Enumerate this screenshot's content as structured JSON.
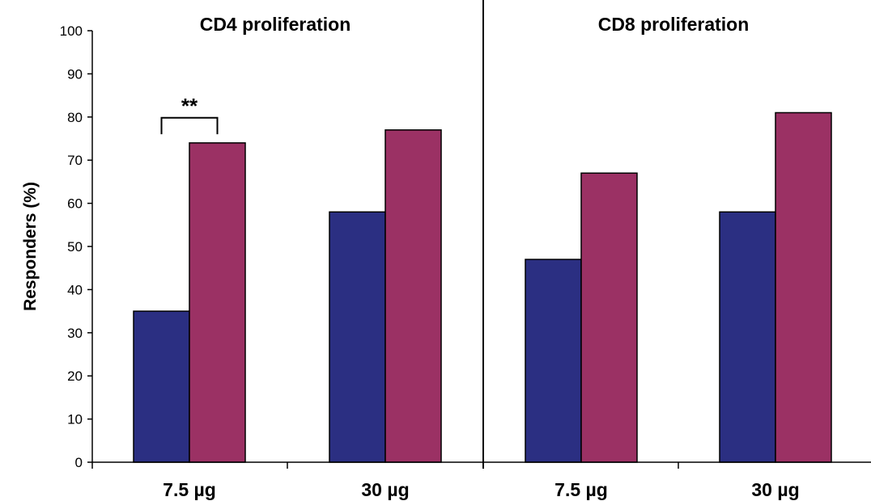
{
  "chart_data": {
    "type": "bar",
    "ylabel": "Responders (%)",
    "ylim": [
      0,
      100
    ],
    "yticks": [
      0,
      10,
      20,
      30,
      40,
      50,
      60,
      70,
      80,
      90,
      100
    ],
    "legend": "none",
    "grid": false,
    "colors": [
      "#2b2f82",
      "#9b3164"
    ],
    "panels": [
      {
        "title": "CD4 proliferation",
        "categories": [
          "7.5 µg",
          "30 µg"
        ],
        "series": [
          {
            "values": [
              35,
              58
            ]
          },
          {
            "values": [
              74,
              77
            ]
          }
        ],
        "annotation": {
          "text": "**",
          "category_index": 0
        }
      },
      {
        "title": "CD8 proliferation",
        "categories": [
          "7.5 µg",
          "30 µg"
        ],
        "series": [
          {
            "values": [
              47,
              58
            ]
          },
          {
            "values": [
              67,
              81
            ]
          }
        ]
      }
    ]
  }
}
